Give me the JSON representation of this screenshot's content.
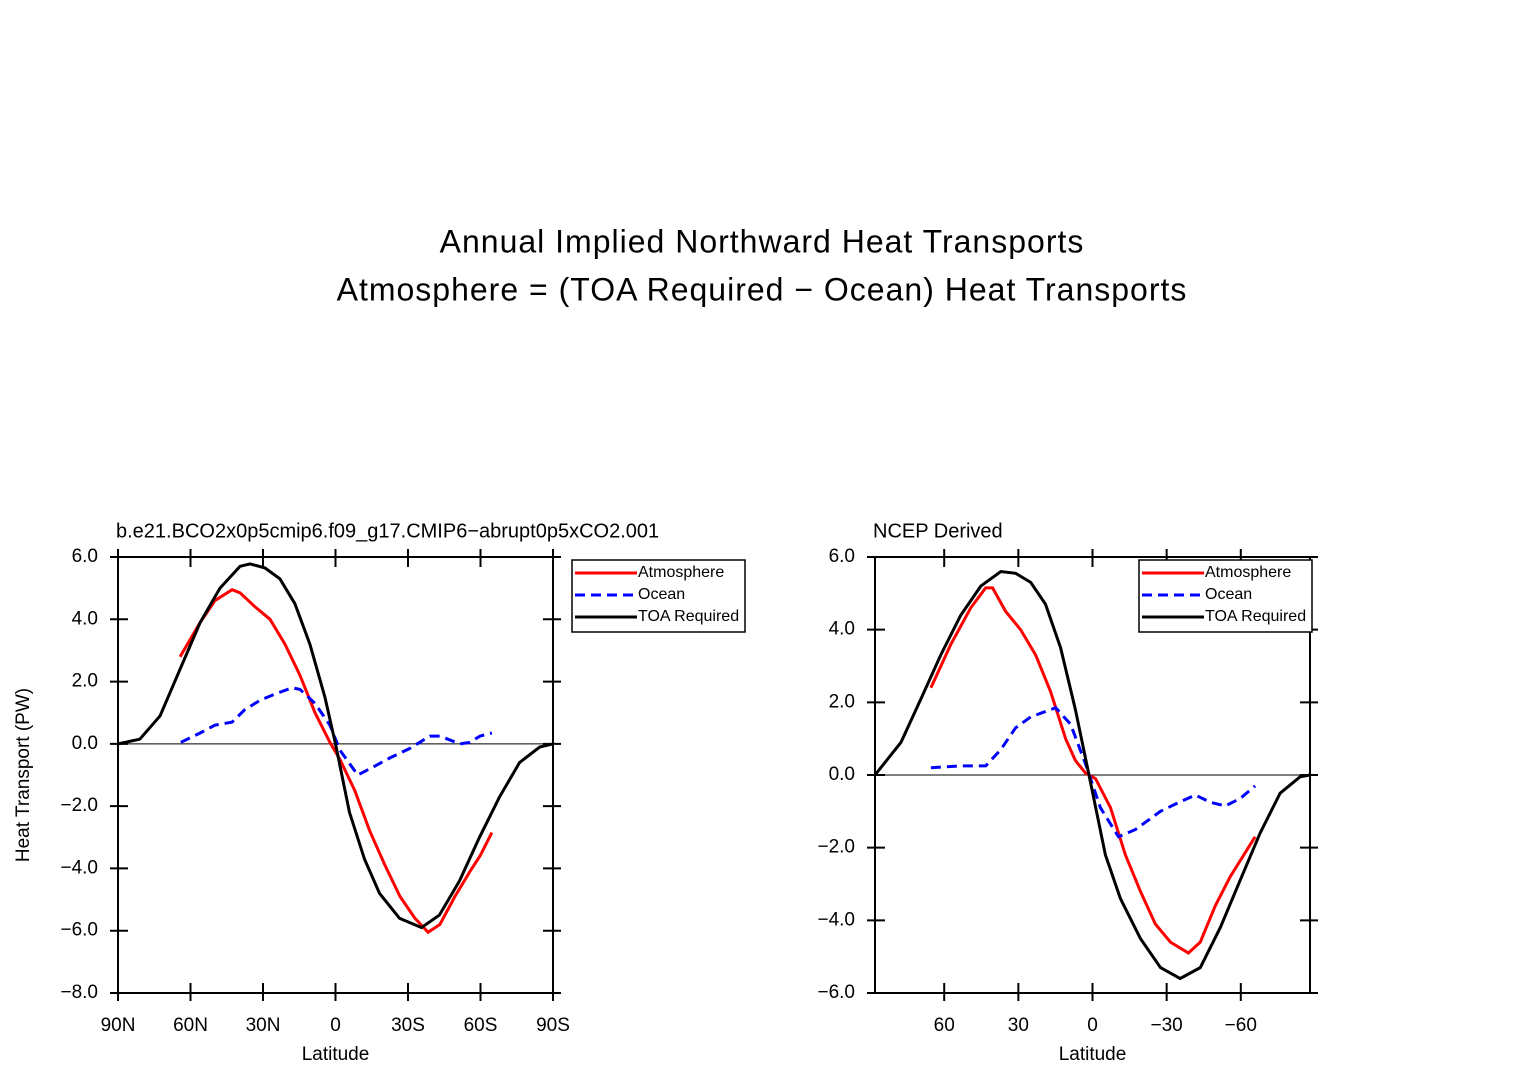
{
  "title": [
    "Annual Implied Northward Heat Transports",
    "Atmosphere = (TOA Required − Ocean) Heat Transports"
  ],
  "chart_data": [
    {
      "type": "line",
      "title": "b.e21.BCO2x0p5cmip6.f09_g17.CMIP6−abrupt0p5xCO2.001",
      "x_label": "Latitude",
      "y_label": "Heat Transport (PW)",
      "xlim": [
        90,
        -90
      ],
      "ylim": [
        -8,
        6
      ],
      "xticks": [
        {
          "value": 90,
          "label": "90N"
        },
        {
          "value": 60,
          "label": "60N"
        },
        {
          "value": 30,
          "label": "30N"
        },
        0,
        {
          "value": -30,
          "label": "30S"
        },
        {
          "value": -60,
          "label": "60S"
        },
        {
          "value": -90,
          "label": "90S"
        }
      ],
      "yticks": [
        {
          "value": 6,
          "label": "6.0"
        },
        {
          "value": 4,
          "label": "4.0"
        },
        {
          "value": 2,
          "label": "2.0"
        },
        {
          "value": 0,
          "label": "0.0"
        },
        {
          "value": -2,
          "label": "−2.0"
        },
        {
          "value": -4,
          "label": "−4.0"
        },
        {
          "value": -6,
          "label": "−6.0"
        },
        {
          "value": -8,
          "label": "−8.0"
        }
      ],
      "legend": "outside-top-right",
      "series": [
        {
          "name": "Atmosphere",
          "color": "#ff0000",
          "dash": "solid",
          "x": [
            64.3,
            56,
            49.9,
            42.8,
            39.5,
            33.3,
            27.1,
            20.9,
            14.7,
            8.5,
            2.3,
            -1.8,
            -8,
            -14.2,
            -20.5,
            -26.7,
            -32.9,
            -38.3,
            -43.2,
            -49.4,
            -55.6,
            -59.8,
            -64.7
          ],
          "values": [
            2.8,
            3.9,
            4.6,
            4.95,
            4.85,
            4.4,
            4.0,
            3.2,
            2.2,
            1.0,
            0.05,
            -0.5,
            -1.5,
            -2.8,
            -3.9,
            -4.9,
            -5.6,
            -6.05,
            -5.8,
            -4.9,
            -4.1,
            -3.6,
            -2.85
          ]
        },
        {
          "name": "Ocean",
          "color": "#0000ff",
          "dash": "dashed",
          "x": [
            64,
            56,
            49.9,
            42.8,
            37.5,
            31.2,
            25,
            18,
            14.7,
            8.5,
            2.3,
            -1.8,
            -9.2,
            -14.2,
            -22.5,
            -30.7,
            -39,
            -43.2,
            -51.5,
            -55.6,
            -59.8,
            -64.7
          ],
          "values": [
            0.05,
            0.35,
            0.6,
            0.7,
            1.1,
            1.4,
            1.6,
            1.8,
            1.75,
            1.3,
            0.6,
            -0.2,
            -1.0,
            -0.8,
            -0.45,
            -0.15,
            0.25,
            0.25,
            0.0,
            0.05,
            0.25,
            0.35
          ]
        },
        {
          "name": "TOA Required",
          "color": "#000000",
          "dash": "solid",
          "x": [
            90,
            81,
            72.6,
            64.3,
            56,
            47.8,
            39.5,
            35.4,
            29.2,
            23,
            16.8,
            10.6,
            4.4,
            0,
            -5.8,
            -12,
            -18.2,
            -26.5,
            -35.6,
            -43,
            -51.3,
            -59.6,
            -67.9,
            -76.2,
            -84.5,
            -90
          ],
          "values": [
            0,
            0.15,
            0.9,
            2.4,
            3.9,
            5.0,
            5.7,
            5.78,
            5.65,
            5.3,
            4.5,
            3.2,
            1.5,
            0,
            -2.2,
            -3.7,
            -4.8,
            -5.6,
            -5.9,
            -5.5,
            -4.4,
            -3.0,
            -1.7,
            -0.6,
            -0.1,
            0
          ]
        }
      ]
    },
    {
      "type": "line",
      "title": "NCEP Derived",
      "x_label": "Latitude",
      "xlim": [
        88,
        -88
      ],
      "ylim": [
        -6,
        6
      ],
      "xticks": [
        60,
        30,
        0,
        {
          "value": -30,
          "label": "−30"
        },
        {
          "value": -60,
          "label": "−60"
        }
      ],
      "yticks": [
        {
          "value": 6,
          "label": "6.0"
        },
        {
          "value": 4,
          "label": "4.0"
        },
        {
          "value": 2,
          "label": "2.0"
        },
        {
          "value": 0,
          "label": "0.0"
        },
        {
          "value": -2,
          "label": "−2.0"
        },
        {
          "value": -4,
          "label": "−4.0"
        },
        {
          "value": -6,
          "label": "−6.0"
        }
      ],
      "legend": "top-right",
      "series": [
        {
          "name": "Atmosphere",
          "color": "#ff0000",
          "dash": "solid",
          "x": [
            65.4,
            57.3,
            49.3,
            43.2,
            40.4,
            35.1,
            29.1,
            23,
            17,
            10.9,
            6.9,
            2.8,
            -1.2,
            -7.3,
            -13.3,
            -19.4,
            -25.4,
            -31.5,
            -38.8,
            -43.6,
            -49.7,
            -55.7,
            -65.8
          ],
          "values": [
            2.4,
            3.6,
            4.6,
            5.15,
            5.15,
            4.5,
            4.0,
            3.3,
            2.3,
            1.0,
            0.4,
            0.05,
            -0.1,
            -0.9,
            -2.2,
            -3.2,
            -4.1,
            -4.6,
            -4.9,
            -4.6,
            -3.6,
            -2.8,
            -1.7
          ]
        },
        {
          "name": "Ocean",
          "color": "#0000ff",
          "dash": "dashed",
          "x": [
            65.4,
            53.3,
            43.2,
            37.1,
            31.1,
            25,
            14.9,
            8.9,
            2.8,
            -3.2,
            -10.5,
            -17.4,
            -27.5,
            -33.5,
            -41.6,
            -47.7,
            -53.7,
            -59.7,
            -65.8
          ],
          "values": [
            0.2,
            0.25,
            0.25,
            0.7,
            1.3,
            1.6,
            1.85,
            1.4,
            0.3,
            -0.9,
            -1.7,
            -1.5,
            -1.0,
            -0.8,
            -0.55,
            -0.75,
            -0.85,
            -0.65,
            -0.3
          ]
        },
        {
          "name": "TOA Required",
          "color": "#000000",
          "dash": "solid",
          "x": [
            88,
            77.5,
            69.4,
            61.4,
            53.3,
            45.2,
            37.1,
            31.1,
            25,
            19,
            12.9,
            6.9,
            0.8,
            -5.2,
            -11.3,
            -19.4,
            -27.5,
            -35.5,
            -43.6,
            -51.7,
            -59.7,
            -67.8,
            -75.9,
            -84,
            -88
          ],
          "values": [
            0,
            0.9,
            2.1,
            3.3,
            4.4,
            5.2,
            5.6,
            5.55,
            5.3,
            4.7,
            3.5,
            1.8,
            -0.2,
            -2.2,
            -3.4,
            -4.5,
            -5.3,
            -5.6,
            -5.3,
            -4.2,
            -2.9,
            -1.6,
            -0.5,
            -0.05,
            0
          ]
        }
      ]
    }
  ]
}
